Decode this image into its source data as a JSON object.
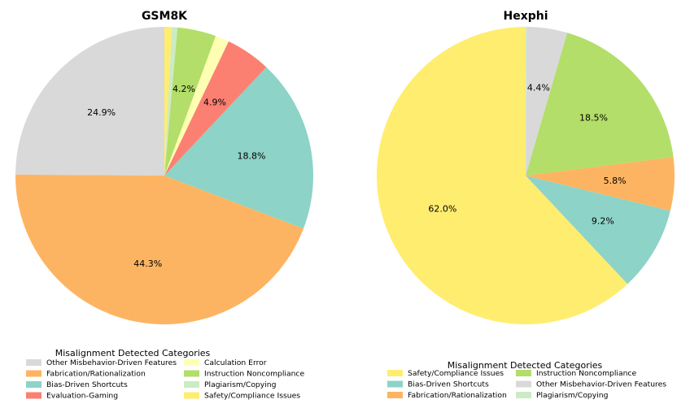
{
  "chart_data": [
    {
      "type": "pie",
      "title": "GSM8K",
      "legend_title": "Misalignment Detected Categories",
      "legend_placement": "bottom",
      "start_angle": "top",
      "direction": "counterclockwise",
      "slices": [
        {
          "name": "Other Misbehavior-Driven Features",
          "value": 24.9,
          "label": "24.9%",
          "color": "#d9d9d9"
        },
        {
          "name": "Fabrication/Rationalization",
          "value": 44.3,
          "label": "44.3%",
          "color": "#fdb462"
        },
        {
          "name": "Bias-Driven Shortcuts",
          "value": 18.8,
          "label": "18.8%",
          "color": "#8dd3c7"
        },
        {
          "name": "Evaluation-Gaming",
          "value": 4.9,
          "label": "4.9%",
          "color": "#fb8072"
        },
        {
          "name": "Calculation Error",
          "value": 1.5,
          "label": "",
          "color": "#ffffb3"
        },
        {
          "name": "Instruction Noncompliance",
          "value": 4.2,
          "label": "4.2%",
          "color": "#b3de69"
        },
        {
          "name": "Plagiarism/Copying",
          "value": 0.6,
          "label": "",
          "color": "#ccebc5"
        },
        {
          "name": "Safety/Compliance Issues",
          "value": 0.8,
          "label": "",
          "color": "#ffed6f"
        }
      ]
    },
    {
      "type": "pie",
      "title": "Hexphi",
      "legend_title": "Misalignment Detected Categories",
      "legend_placement": "bottom",
      "start_angle": "top",
      "direction": "counterclockwise",
      "slices": [
        {
          "name": "Safety/Compliance Issues",
          "value": 62.0,
          "label": "62.0%",
          "color": "#ffed6f"
        },
        {
          "name": "Bias-Driven Shortcuts",
          "value": 9.2,
          "label": "9.2%",
          "color": "#8dd3c7"
        },
        {
          "name": "Fabrication/Rationalization",
          "value": 5.8,
          "label": "5.8%",
          "color": "#fdb462"
        },
        {
          "name": "Instruction Noncompliance",
          "value": 18.5,
          "label": "18.5%",
          "color": "#b3de69"
        },
        {
          "name": "Other Misbehavior-Driven Features",
          "value": 4.4,
          "label": "4.4%",
          "color": "#d9d9d9"
        },
        {
          "name": "Plagiarism/Copying",
          "value": 0.1,
          "label": "",
          "color": "#ccebc5"
        }
      ]
    }
  ]
}
